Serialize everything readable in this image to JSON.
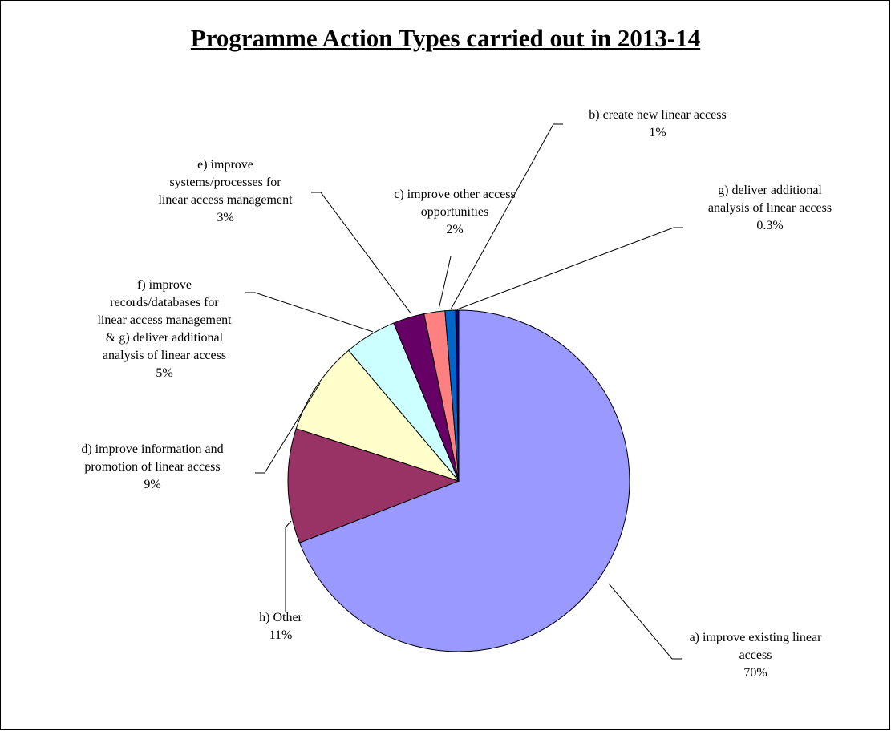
{
  "chart_data": {
    "type": "pie",
    "title": "Programme Action Types carried out in 2013-14",
    "slices": [
      {
        "key": "a",
        "label": [
          "a) improve existing linear",
          "access"
        ],
        "value": 70,
        "value_label": "70%",
        "color": "#9999FF"
      },
      {
        "key": "h",
        "label": [
          "h) Other"
        ],
        "value": 11,
        "value_label": "11%",
        "color": "#993366"
      },
      {
        "key": "d",
        "label": [
          "d) improve information and",
          "promotion of linear access"
        ],
        "value": 9,
        "value_label": "9%",
        "color": "#FFFFCC"
      },
      {
        "key": "f",
        "label": [
          "f)  improve",
          "records/databases for",
          "linear access management",
          "& g) deliver additional",
          "analysis of linear access"
        ],
        "value": 5,
        "value_label": "5%",
        "color": "#CCFFFF"
      },
      {
        "key": "e",
        "label": [
          "e) improve",
          "systems/processes for",
          "linear access management"
        ],
        "value": 3,
        "value_label": "3%",
        "color": "#660066"
      },
      {
        "key": "c",
        "label": [
          "c) improve other access",
          "opportunities"
        ],
        "value": 2,
        "value_label": "2%",
        "color": "#FF8080"
      },
      {
        "key": "b",
        "label": [
          "b) create new linear access"
        ],
        "value": 1,
        "value_label": "1%",
        "color": "#0066CC"
      },
      {
        "key": "g",
        "label": [
          "g) deliver additional",
          "analysis of linear access"
        ],
        "value": 0.3,
        "value_label": "0.3%",
        "color": "#000080"
      }
    ]
  }
}
